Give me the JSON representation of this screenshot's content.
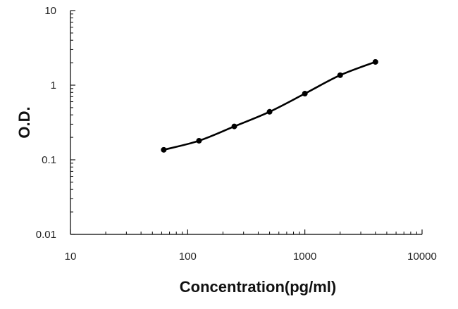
{
  "chart_data": {
    "type": "line",
    "title": "",
    "xlabel": "Concentration(pg/ml)",
    "ylabel": "O.D.",
    "x_scale": "log",
    "y_scale": "log",
    "xlim": [
      10,
      10000
    ],
    "ylim": [
      0.01,
      10
    ],
    "x_ticks": [
      "10",
      "100",
      "1000",
      "10000"
    ],
    "y_ticks": [
      "0.01",
      "0.1",
      "1",
      "10"
    ],
    "grid": false,
    "legend": "none",
    "series": [
      {
        "x": [
          62.5,
          125,
          250,
          500,
          1000,
          2000,
          4000
        ],
        "y": [
          0.136,
          0.18,
          0.28,
          0.44,
          0.77,
          1.36,
          2.05
        ],
        "color": "#000000",
        "marker": "circle",
        "smooth": true
      }
    ]
  }
}
